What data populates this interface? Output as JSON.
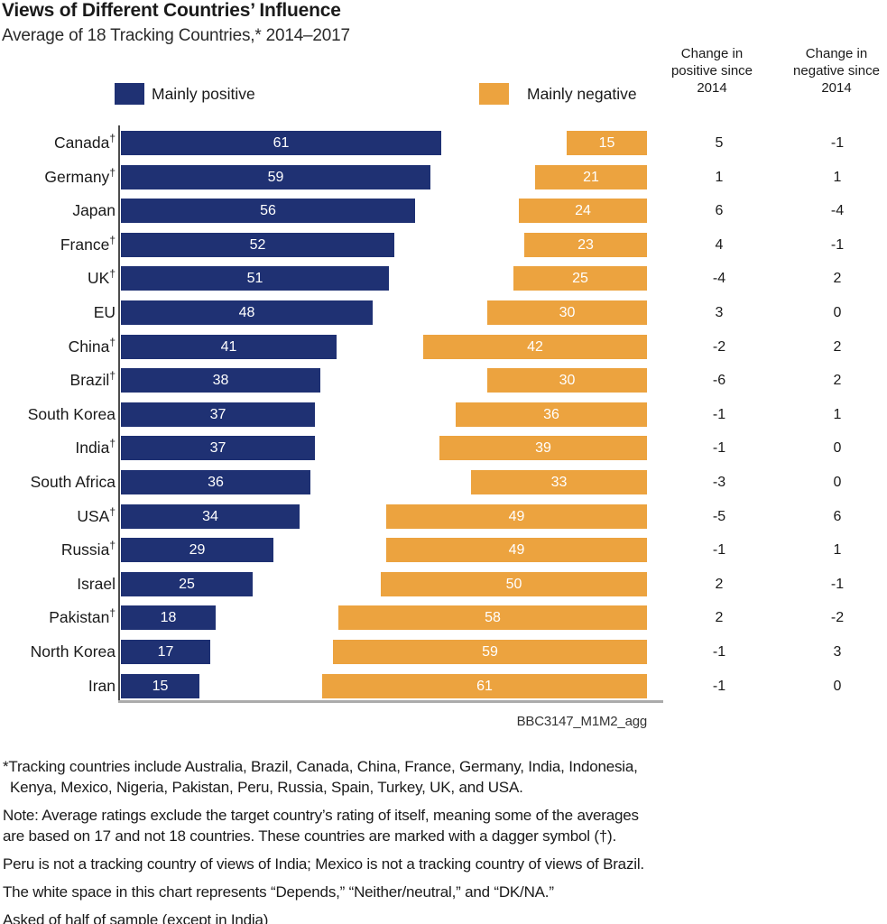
{
  "title": "Views of Different Countries’ Influence",
  "subtitle": "Average of 18 Tracking Countries,* 2014–2017",
  "legend": {
    "positive_label": "Mainly positive",
    "negative_label": "Mainly negative"
  },
  "columns": {
    "positive_change_header": "Change in positive since 2014",
    "negative_change_header": "Change in negative since 2014"
  },
  "colors": {
    "positive_bar": "#1F3173",
    "negative_bar": "#ECA33F",
    "bar_value_text": "#FFFFFF",
    "axis_vertical": "#4D4D4D",
    "axis_horizontal": "#ABABAB",
    "text": "#1A1A1A"
  },
  "dagger_symbol": "†",
  "source": "BBC3147_M1M2_agg",
  "chart_data": {
    "type": "bar",
    "orientation": "horizontal",
    "layout": "diverging-two-sided",
    "unit": "percent",
    "value_range_per_side": [
      0,
      61
    ],
    "legend_position": "top",
    "grid": false,
    "categories": [
      "Canada",
      "Germany",
      "Japan",
      "France",
      "UK",
      "EU",
      "China",
      "Brazil",
      "South Korea",
      "India",
      "South Africa",
      "USA",
      "Russia",
      "Israel",
      "Pakistan",
      "North Korea",
      "Iran"
    ],
    "dagger_flags": [
      true,
      true,
      false,
      true,
      true,
      false,
      true,
      true,
      false,
      true,
      false,
      true,
      true,
      false,
      true,
      false,
      false
    ],
    "series": [
      {
        "name": "Mainly positive",
        "values": [
          61,
          59,
          56,
          52,
          51,
          48,
          41,
          38,
          37,
          37,
          36,
          34,
          29,
          25,
          18,
          17,
          15
        ]
      },
      {
        "name": "Mainly negative",
        "values": [
          15,
          21,
          24,
          23,
          25,
          30,
          42,
          30,
          36,
          39,
          33,
          49,
          49,
          50,
          58,
          59,
          61
        ]
      },
      {
        "name": "Change in positive since 2014",
        "values": [
          5,
          1,
          6,
          4,
          -4,
          3,
          -2,
          -6,
          -1,
          -1,
          -3,
          -5,
          -1,
          2,
          2,
          -1,
          -1
        ]
      },
      {
        "name": "Change in negative since 2014",
        "values": [
          -1,
          1,
          -4,
          -1,
          2,
          0,
          2,
          2,
          1,
          0,
          0,
          6,
          1,
          -1,
          -2,
          3,
          0
        ]
      }
    ]
  },
  "footnotes": [
    "*Tracking countries include Australia, Brazil, Canada, China, France, Germany, India, Indonesia,\nKenya, Mexico, Nigeria, Pakistan, Peru, Russia, Spain, Turkey, UK, and USA.",
    "Note: Average ratings exclude the target country’s rating of itself, meaning some of the averages\nare based on 17 and not 18 countries. These countries are marked with a dagger symbol (†).",
    "Peru is not a tracking country of views of India; Mexico is not a tracking country of views of Brazil.",
    "The white space in this chart represents “Depends,” “Neither/neutral,” and “DK/NA.”",
    "Asked of half of sample (except in India)"
  ]
}
